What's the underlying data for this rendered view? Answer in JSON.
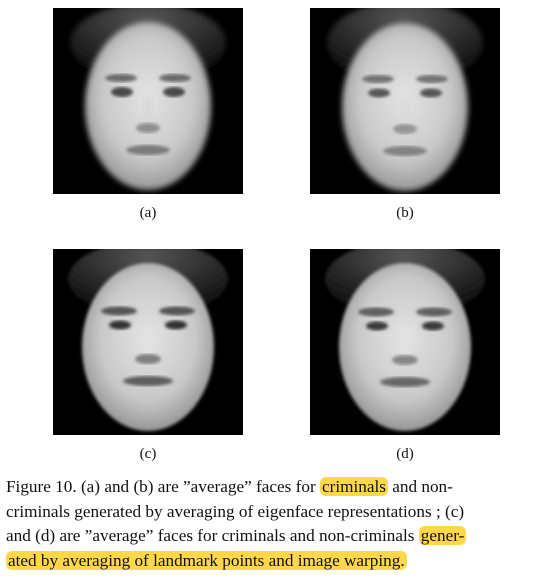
{
  "figure": {
    "panels": [
      {
        "id": "a",
        "label": "(a)",
        "alt": "average face (a)"
      },
      {
        "id": "b",
        "label": "(b)",
        "alt": "average face (b)"
      },
      {
        "id": "c",
        "label": "(c)",
        "alt": "average face (c)"
      },
      {
        "id": "d",
        "label": "(d)",
        "alt": "average face (d)"
      }
    ],
    "caption": {
      "line1_pre": "Figure 10. (a) and (b) are ”average” faces for ",
      "line1_hl": "criminals",
      "line1_post": " and non-",
      "line2": "criminals generated by averaging of eigenface representations ; (c)",
      "line3_pre": "and (d) are ”average” faces for criminals and non-criminals ",
      "line3_hl": "gener-",
      "line4_hl": "ated by averaging of landmark points and image warping."
    },
    "highlight_color": "#ffd84a"
  }
}
